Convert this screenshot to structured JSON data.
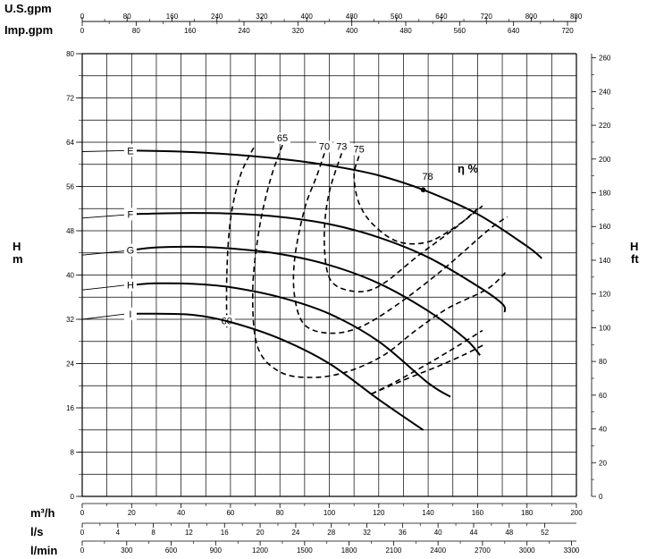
{
  "chart_data": {
    "type": "line",
    "unit_labels": {
      "usgpm": "U.S.gpm",
      "impgpm": "Imp.gpm",
      "m3h": "m³/h",
      "ls": "l/s",
      "lmin": "l/min",
      "h_left": "H",
      "m": "m",
      "h_right": "H",
      "ft": "ft",
      "eta": "η %"
    },
    "axes": {
      "x_m3h": {
        "range": [
          0,
          200
        ],
        "ticks": [
          "0",
          "20",
          "40",
          "60",
          "80",
          "100",
          "120",
          "140",
          "160",
          "180",
          "200"
        ]
      },
      "x_ls": {
        "ticks": [
          "0",
          "4",
          "8",
          "12",
          "16",
          "20",
          "24",
          "28",
          "32",
          "36",
          "40",
          "44",
          "48",
          "52"
        ]
      },
      "x_lmin": {
        "ticks": [
          "0",
          "300",
          "600",
          "900",
          "1200",
          "1500",
          "1800",
          "2100",
          "2400",
          "2700",
          "3000",
          "3300"
        ]
      },
      "x_usgpm": {
        "ticks": [
          "0",
          "80",
          "160",
          "240",
          "320",
          "400",
          "480",
          "560",
          "640",
          "720",
          "800",
          "880"
        ]
      },
      "x_impgpm": {
        "ticks": [
          "0",
          "80",
          "160",
          "240",
          "320",
          "400",
          "480",
          "560",
          "640",
          "720"
        ]
      },
      "y_m": {
        "range": [
          0,
          80
        ],
        "ticks": [
          "0",
          "8",
          "16",
          "24",
          "32",
          "40",
          "48",
          "56",
          "64",
          "72",
          "80"
        ]
      },
      "y_ft": {
        "ticks": [
          "0",
          "20",
          "40",
          "60",
          "80",
          "100",
          "120",
          "140",
          "160",
          "180",
          "200",
          "220",
          "240",
          "260"
        ]
      }
    },
    "grid": true,
    "series": [
      {
        "name": "E",
        "points": [
          [
            20,
            62.5
          ],
          [
            40,
            62.3
          ],
          [
            60,
            61.8
          ],
          [
            80,
            61.0
          ],
          [
            100,
            59.8
          ],
          [
            120,
            58.0
          ],
          [
            138,
            55.4
          ],
          [
            160,
            51.0
          ],
          [
            180,
            45.2
          ],
          [
            186,
            43.0
          ]
        ]
      },
      {
        "name": "F",
        "points": [
          [
            20,
            51.0
          ],
          [
            40,
            51.2
          ],
          [
            60,
            51.1
          ],
          [
            80,
            50.5
          ],
          [
            100,
            49.2
          ],
          [
            120,
            46.8
          ],
          [
            140,
            43.2
          ],
          [
            160,
            38.0
          ],
          [
            170,
            34.8
          ],
          [
            171,
            33.3
          ]
        ]
      },
      {
        "name": "G",
        "points": [
          [
            20,
            44.5
          ],
          [
            30,
            45.0
          ],
          [
            45,
            45.1
          ],
          [
            60,
            44.8
          ],
          [
            80,
            43.8
          ],
          [
            100,
            41.8
          ],
          [
            120,
            38.5
          ],
          [
            140,
            33.5
          ],
          [
            155,
            28.5
          ],
          [
            161,
            25.5
          ]
        ]
      },
      {
        "name": "H",
        "points": [
          [
            20,
            38.2
          ],
          [
            30,
            38.5
          ],
          [
            45,
            38.4
          ],
          [
            60,
            37.8
          ],
          [
            80,
            36.0
          ],
          [
            100,
            33.0
          ],
          [
            120,
            28.0
          ],
          [
            140,
            20.5
          ],
          [
            149,
            18.0
          ]
        ]
      },
      {
        "name": "I",
        "points": [
          [
            20,
            33.0
          ],
          [
            30,
            33.0
          ],
          [
            45,
            32.8
          ],
          [
            60,
            31.5
          ],
          [
            80,
            28.5
          ],
          [
            100,
            24.0
          ],
          [
            120,
            17.5
          ],
          [
            138,
            12.0
          ]
        ]
      }
    ],
    "series_prelabel": [
      {
        "name": "E",
        "points": [
          [
            0,
            62.3
          ],
          [
            18,
            62.5
          ]
        ]
      },
      {
        "name": "F",
        "points": [
          [
            0,
            50.3
          ],
          [
            18,
            50.9
          ]
        ]
      },
      {
        "name": "G",
        "points": [
          [
            0,
            43.6
          ],
          [
            18,
            44.4
          ]
        ]
      },
      {
        "name": "H",
        "points": [
          [
            0,
            37.3
          ],
          [
            18,
            38.2
          ]
        ]
      },
      {
        "name": "I",
        "points": [
          [
            0,
            32.0
          ],
          [
            18,
            33.0
          ]
        ]
      }
    ],
    "efficiency_curves": [
      {
        "name": "60",
        "points": [
          [
            58.5,
            30.5
          ],
          [
            58.5,
            40
          ],
          [
            60,
            50
          ],
          [
            64,
            58
          ],
          [
            70,
            63.5
          ]
        ]
      },
      {
        "name": "65",
        "points": [
          [
            81,
            63.5
          ],
          [
            76,
            57
          ],
          [
            71.5,
            48
          ],
          [
            69,
            37
          ],
          [
            71,
            27
          ],
          [
            80,
            22.5
          ],
          [
            93,
            21.5
          ],
          [
            107,
            22.5
          ],
          [
            122,
            25.5
          ],
          [
            135,
            30.0
          ],
          [
            148,
            34.0
          ],
          [
            164,
            37.5
          ],
          [
            172,
            40.8
          ]
        ]
      },
      {
        "name": "70",
        "points": [
          [
            98,
            62
          ],
          [
            95,
            58
          ],
          [
            90,
            52
          ],
          [
            86,
            43
          ],
          [
            86,
            36
          ],
          [
            90,
            31
          ],
          [
            100,
            29.5
          ],
          [
            112,
            30.5
          ],
          [
            127,
            34.5
          ],
          [
            146,
            41.0
          ],
          [
            164,
            48.0
          ],
          [
            172,
            50.5
          ]
        ]
      },
      {
        "name": "73",
        "points": [
          [
            105,
            62
          ],
          [
            100,
            55
          ],
          [
            98,
            48
          ],
          [
            99,
            41
          ],
          [
            103,
            38.0
          ],
          [
            113,
            37.0
          ],
          [
            122,
            38.5
          ],
          [
            136,
            43.5
          ],
          [
            151,
            48.5
          ],
          [
            160,
            52.0
          ]
        ]
      },
      {
        "name": "75",
        "points": [
          [
            112,
            61.5
          ],
          [
            110,
            58
          ],
          [
            112,
            53
          ],
          [
            118,
            49
          ],
          [
            128,
            46.0
          ],
          [
            140,
            46.0
          ],
          [
            152,
            49.0
          ],
          [
            162,
            52.5
          ]
        ]
      },
      {
        "name": "",
        "points": [
          [
            117,
            18.5
          ],
          [
            128,
            21.0
          ],
          [
            140,
            24.0
          ],
          [
            152,
            27.2
          ],
          [
            162,
            30.0
          ]
        ]
      },
      {
        "name": "",
        "points": [
          [
            117,
            18.5
          ],
          [
            130,
            21.0
          ],
          [
            145,
            23.7
          ],
          [
            155,
            25.7
          ],
          [
            163,
            27.5
          ]
        ]
      }
    ],
    "annotation": {
      "label": "78",
      "point": [
        138,
        55.4
      ]
    }
  }
}
